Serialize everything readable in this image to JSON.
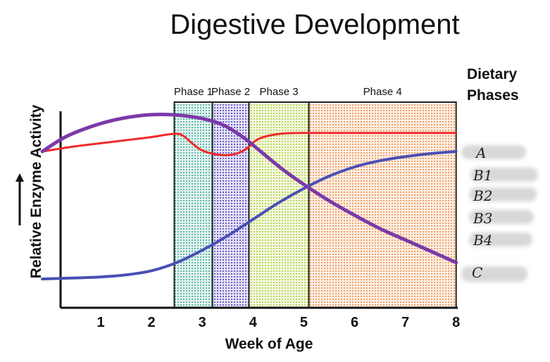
{
  "chart_data": {
    "type": "line",
    "title": "Digestive Development",
    "xlabel": "Week of Age",
    "ylabel": "Relative Enzyme Activity",
    "xlim": [
      0,
      8
    ],
    "ylim": [
      0,
      100
    ],
    "x_ticks": [
      1,
      2,
      3,
      4,
      5,
      6,
      7,
      8
    ],
    "phases": [
      {
        "label": "Phase 1",
        "start": 2.45,
        "end": 3.2,
        "color": "#5fb8a8"
      },
      {
        "label": "Phase 2",
        "start": 3.2,
        "end": 3.92,
        "color": "#6a5fc8"
      },
      {
        "label": "Phase 3",
        "start": 3.92,
        "end": 5.1,
        "color": "#b9d65a"
      },
      {
        "label": "Phase 4",
        "start": 5.1,
        "end": 8.0,
        "color": "#f0a26a"
      }
    ],
    "series": [
      {
        "name": "A",
        "color": "#ee2a2a",
        "x": [
          -0.15,
          0.5,
          1.0,
          1.5,
          2.0,
          2.4,
          2.6,
          2.8,
          3.0,
          3.3,
          3.6,
          3.85,
          4.1,
          4.5,
          5.0,
          6.0,
          7.0,
          8.0
        ],
        "y": [
          76,
          78.5,
          80,
          81.5,
          83,
          84.5,
          84,
          80,
          76.5,
          74.5,
          74.5,
          77,
          82,
          84.5,
          85,
          85,
          85,
          85
        ]
      },
      {
        "name": "B",
        "color": "#4a4fb5",
        "x": [
          -0.15,
          0.5,
          1.0,
          1.5,
          2.0,
          2.5,
          3.0,
          3.5,
          4.0,
          4.5,
          5.0,
          5.5,
          6.0,
          6.5,
          7.0,
          7.5,
          8.0
        ],
        "y": [
          14,
          14.5,
          15,
          16,
          18,
          22,
          28,
          35,
          43,
          51,
          58,
          64,
          68.5,
          71.5,
          73.5,
          75,
          76
        ]
      },
      {
        "name": "C",
        "color": "#7b3aa8",
        "x": [
          -0.15,
          0.3,
          0.8,
          1.3,
          1.8,
          2.2,
          2.6,
          3.0,
          3.4,
          3.8,
          4.2,
          4.6,
          5.0,
          5.5,
          6.0,
          6.5,
          7.0,
          7.5,
          8.0
        ],
        "y": [
          76,
          83,
          88,
          91.5,
          93.5,
          94,
          93.5,
          92,
          89,
          83,
          75,
          67,
          60,
          52,
          45,
          38.5,
          33,
          27.5,
          22
        ]
      }
    ],
    "legend_title": [
      "Dietary",
      "Phases"
    ],
    "legend_entries": [
      "A",
      "B1",
      "B2",
      "B3",
      "B4",
      "C"
    ]
  }
}
